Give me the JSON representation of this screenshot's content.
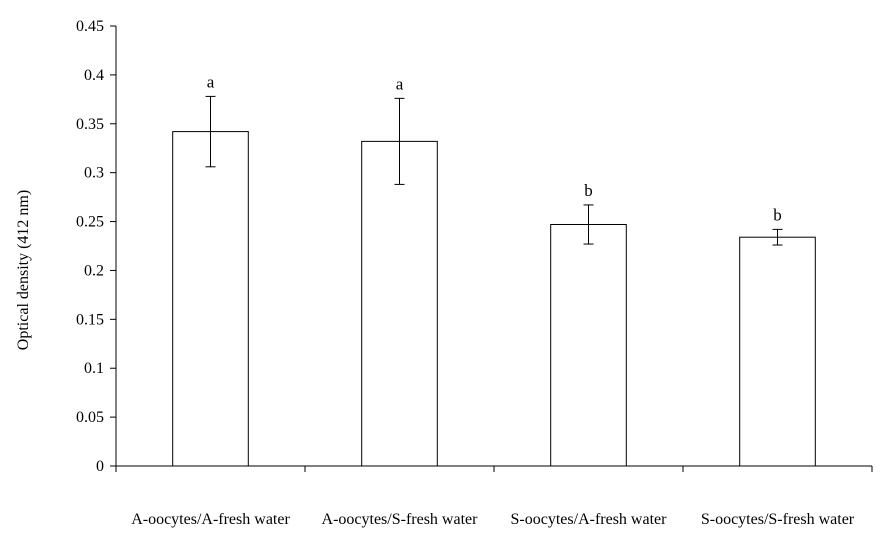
{
  "chart_data": {
    "type": "bar",
    "title": "",
    "xlabel": "",
    "ylabel": "Optical density (412 nm)",
    "ylim": [
      0,
      0.45
    ],
    "yticks": [
      0,
      0.05,
      0.1,
      0.15,
      0.2,
      0.25,
      0.3,
      0.35,
      0.4,
      0.45
    ],
    "ytick_labels": [
      "0",
      "0.05",
      "0.1",
      "0.15",
      "0.2",
      "0.25",
      "0.3",
      "0.35",
      "0.4",
      "0.45"
    ],
    "categories": [
      "A-oocytes/A-fresh water",
      "A-oocytes/S-fresh water",
      "S-oocytes/A-fresh water",
      "S-oocytes/S-fresh water"
    ],
    "values": [
      0.342,
      0.332,
      0.247,
      0.234
    ],
    "error": [
      0.036,
      0.044,
      0.02,
      0.008
    ],
    "significance": [
      "a",
      "a",
      "b",
      "b"
    ],
    "grid": false,
    "bar_fill": "#ffffff",
    "bar_stroke": "#000000"
  }
}
